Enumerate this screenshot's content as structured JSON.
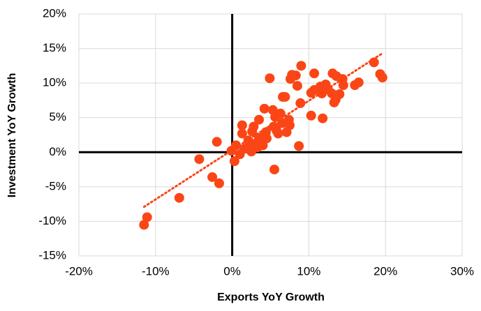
{
  "chart_data": {
    "type": "scatter",
    "xlabel": "Exports YoY Growth",
    "ylabel": "Investment  YoY Growth",
    "color": "#fa4616",
    "grid": true,
    "xlim": [
      -20,
      30
    ],
    "xticks": [
      {
        "value": -20,
        "label": "-20%"
      },
      {
        "value": -10,
        "label": "-10%"
      },
      {
        "value": 0,
        "label": "0%"
      },
      {
        "value": 10,
        "label": "10%"
      },
      {
        "value": 20,
        "label": "20%"
      },
      {
        "value": 30,
        "label": "30%"
      }
    ],
    "ylim": [
      -15,
      20
    ],
    "yticks": [
      {
        "value": -15,
        "label": "-15%"
      },
      {
        "value": -10,
        "label": "-10%"
      },
      {
        "value": -5,
        "label": "-5%"
      },
      {
        "value": 0,
        "label": "0%"
      },
      {
        "value": 5,
        "label": "5%"
      },
      {
        "value": 10,
        "label": "10%"
      },
      {
        "value": 15,
        "label": "15%"
      },
      {
        "value": 20,
        "label": "20%"
      }
    ],
    "x": [
      -11.5,
      -11.1,
      -6.9,
      -4.3,
      -2.6,
      -1.7,
      -2.0,
      -0.1,
      0.3,
      0.5,
      1.0,
      1.3,
      1.3,
      1.6,
      2.1,
      2.4,
      2.6,
      2.8,
      2.8,
      2.5,
      3.3,
      3.5,
      3.5,
      4.0,
      4.2,
      4.4,
      4.5,
      4.9,
      5.3,
      5.5,
      5.4,
      5.6,
      5.8,
      6.0,
      6.3,
      6.5,
      6.6,
      6.9,
      7.1,
      7.4,
      7.5,
      7.6,
      7.8,
      8.3,
      8.5,
      8.7,
      8.9,
      9.0,
      10.3,
      10.3,
      10.7,
      10.7,
      11.3,
      11.5,
      11.7,
      11.8,
      12.2,
      12.5,
      13.0,
      13.1,
      13.3,
      13.5,
      13.6,
      14.0,
      14.4,
      14.5,
      16.0,
      16.5,
      18.5,
      19.3,
      19.6
    ],
    "y": [
      -10.5,
      -9.4,
      -6.6,
      -1.0,
      -3.6,
      -4.5,
      1.5,
      0.2,
      -1.3,
      1.0,
      -0.3,
      3.9,
      2.7,
      0.5,
      1.7,
      0.7,
      3.0,
      3.7,
      1.2,
      0.1,
      0.7,
      2.1,
      4.7,
      1.0,
      6.3,
      2.9,
      2.0,
      10.7,
      6.1,
      -2.5,
      3.7,
      5.1,
      3.1,
      2.7,
      5.6,
      4.2,
      8.0,
      8.0,
      2.9,
      4.7,
      3.9,
      10.6,
      11.2,
      11.1,
      9.6,
      0.9,
      7.1,
      12.5,
      8.6,
      5.3,
      11.4,
      9.0,
      9.0,
      9.5,
      8.5,
      4.9,
      9.8,
      9.1,
      8.5,
      11.4,
      7.2,
      7.6,
      11.0,
      8.4,
      10.6,
      9.7,
      9.7,
      10.1,
      13.0,
      11.3,
      10.8
    ],
    "trendline": {
      "x": [
        -11.5,
        19.6
      ],
      "y": [
        -7.9,
        14.3
      ]
    }
  }
}
